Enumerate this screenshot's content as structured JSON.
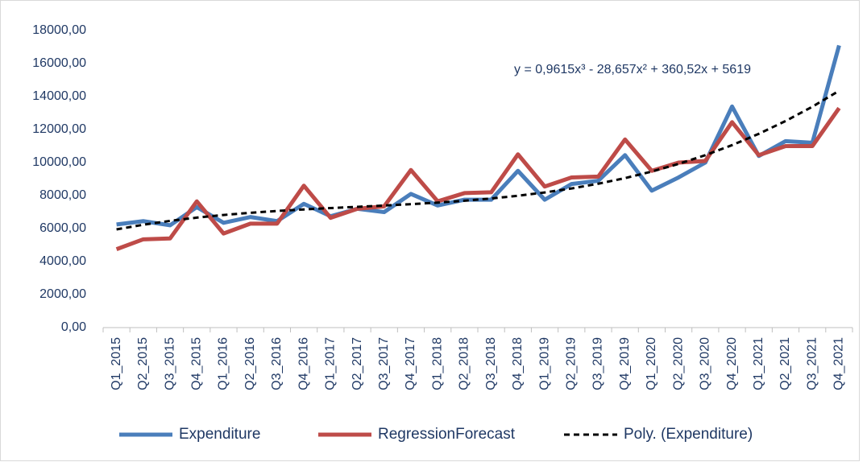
{
  "chart_data": {
    "type": "line",
    "categories": [
      "Q1_2015",
      "Q2_2015",
      "Q3_2015",
      "Q4_2015",
      "Q1_2016",
      "Q2_2016",
      "Q3_2016",
      "Q4_2016",
      "Q1_2017",
      "Q2_2017",
      "Q3_2017",
      "Q4_2017",
      "Q1_2018",
      "Q2_2018",
      "Q3_2018",
      "Q4_2018",
      "Q1_2019",
      "Q2_2019",
      "Q3_2019",
      "Q4_2019",
      "Q1_2020",
      "Q2_2020",
      "Q3_2020",
      "Q4_2020",
      "Q1_2021",
      "Q2_2021",
      "Q3_2021",
      "Q4_2021"
    ],
    "series": [
      {
        "name": "Expenditure",
        "color": "#4a7ebb",
        "values": [
          6250,
          6450,
          6200,
          7300,
          6350,
          6700,
          6450,
          7500,
          6750,
          7200,
          7000,
          8100,
          7400,
          7750,
          7750,
          9500,
          7750,
          8700,
          8900,
          10450,
          8300,
          9100,
          10000,
          13400,
          10400,
          11300,
          11200,
          17100
        ]
      },
      {
        "name": "RegressionForecast",
        "color": "#be4b48",
        "values": [
          4750,
          5350,
          5400,
          7650,
          5700,
          6300,
          6300,
          8600,
          6650,
          7200,
          7350,
          9550,
          7650,
          8150,
          8200,
          10500,
          8550,
          9100,
          9150,
          11400,
          9500,
          10000,
          10100,
          12450,
          10450,
          11000,
          11000,
          13300
        ]
      },
      {
        "name": "Poly. (Expenditure)",
        "color": "#000000",
        "dashed": true,
        "values": [
          5952,
          6233,
          6469,
          6664,
          6825,
          6958,
          7068,
          7161,
          7243,
          7320,
          7397,
          7480,
          7575,
          7688,
          7824,
          7989,
          8190,
          8431,
          8719,
          9059,
          9457,
          9919,
          10450,
          11057,
          11745,
          12520,
          13387,
          14353
        ]
      }
    ],
    "annotation": "y = 0,9615x³ - 28,657x² + 360,52x + 5619",
    "ylim": [
      0,
      18000
    ],
    "yticks": [
      {
        "value": 0,
        "label": "0,00"
      },
      {
        "value": 2000,
        "label": "2000,00"
      },
      {
        "value": 4000,
        "label": "4000,00"
      },
      {
        "value": 6000,
        "label": "6000,00"
      },
      {
        "value": 8000,
        "label": "8000,00"
      },
      {
        "value": 10000,
        "label": "10000,00"
      },
      {
        "value": 12000,
        "label": "12000,00"
      },
      {
        "value": 14000,
        "label": "14000,00"
      },
      {
        "value": 16000,
        "label": "16000,00"
      },
      {
        "value": 18000,
        "label": "18000,00"
      }
    ],
    "grid": false,
    "legend": "bottom"
  }
}
